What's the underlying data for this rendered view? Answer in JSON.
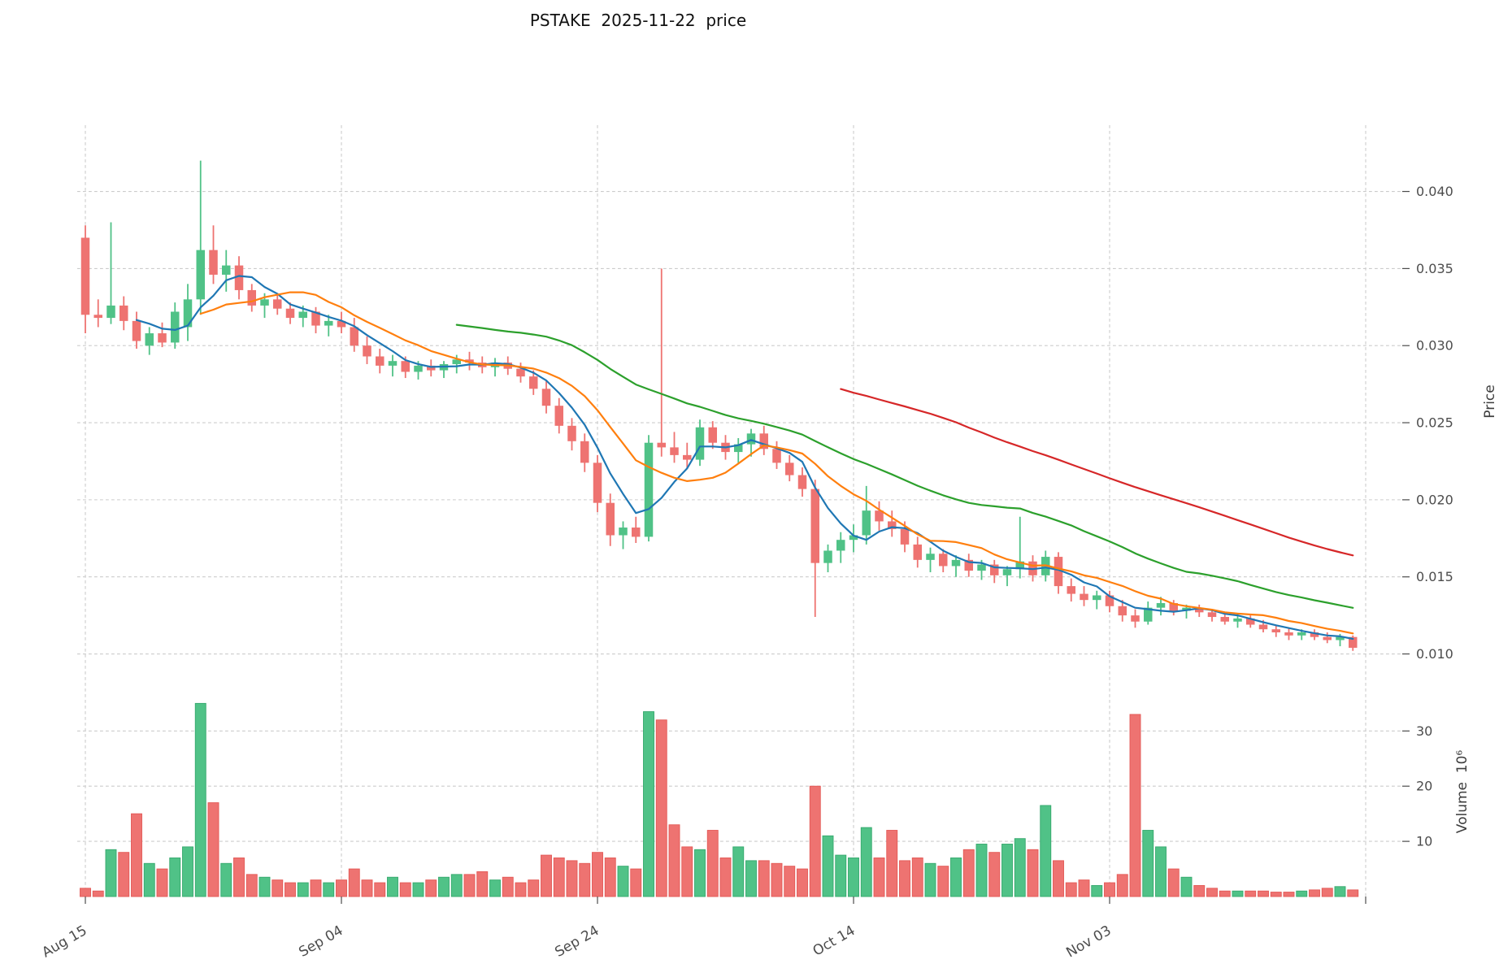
{
  "chart_data": {
    "type": "candlestick",
    "title": "PSTAKE  2025-11-22  price",
    "ylabel_price": "Price",
    "ylabel_volume": "Volume  10⁶",
    "price_ticks": [
      "0.010",
      "0.015",
      "0.020",
      "0.025",
      "0.030",
      "0.035",
      "0.040"
    ],
    "volume_ticks": [
      "10",
      "20",
      "30"
    ],
    "x_ticks": [
      {
        "label": "Aug 15",
        "day": 0
      },
      {
        "label": "Sep 04",
        "day": 20
      },
      {
        "label": "Sep 24",
        "day": 40
      },
      {
        "label": "Oct 14",
        "day": 60
      },
      {
        "label": "Nov 03",
        "day": 80
      }
    ],
    "extra_grid_days": [
      100
    ],
    "ylim_price": [
      0.0085,
      0.0443
    ],
    "ylim_volume": [
      0,
      38
    ],
    "grid": true,
    "legend": "none",
    "overlays": [
      {
        "name": "sma5",
        "period": 5,
        "color": "#1f77b4"
      },
      {
        "name": "sma10",
        "period": 10,
        "color": "#ff7f0e"
      },
      {
        "name": "sma30",
        "period": 30,
        "color": "#2ca02c"
      },
      {
        "name": "sma60",
        "period": 60,
        "color": "#d62728"
      }
    ],
    "colors": {
      "up": "#50c287",
      "down": "#ee7371",
      "up_edge": "#35a86d",
      "down_edge": "#e35855",
      "grid": "#cccccc",
      "tick_text": "#4c4c4c",
      "title_text": "#111111"
    },
    "columns": [
      "date",
      "open",
      "high",
      "low",
      "close",
      "volume_millions"
    ],
    "candles": [
      [
        "2025-08-15",
        0.037,
        0.0378,
        0.0308,
        0.032,
        1.5
      ],
      [
        "2025-08-16",
        0.032,
        0.033,
        0.0312,
        0.0318,
        1.0
      ],
      [
        "2025-08-17",
        0.0318,
        0.038,
        0.0314,
        0.0326,
        8.5
      ],
      [
        "2025-08-18",
        0.0326,
        0.0332,
        0.031,
        0.0316,
        8.0
      ],
      [
        "2025-08-19",
        0.0316,
        0.0322,
        0.0298,
        0.0303,
        15.0
      ],
      [
        "2025-08-20",
        0.03,
        0.0312,
        0.0294,
        0.0308,
        6.0
      ],
      [
        "2025-08-21",
        0.0308,
        0.0315,
        0.0299,
        0.0302,
        5.0
      ],
      [
        "2025-08-22",
        0.0302,
        0.0328,
        0.0298,
        0.0322,
        7.0
      ],
      [
        "2025-08-23",
        0.0312,
        0.034,
        0.0303,
        0.033,
        9.0
      ],
      [
        "2025-08-24",
        0.033,
        0.042,
        0.032,
        0.0362,
        35.0
      ],
      [
        "2025-08-25",
        0.0362,
        0.0378,
        0.034,
        0.0346,
        17.0
      ],
      [
        "2025-08-26",
        0.0346,
        0.0362,
        0.0335,
        0.0352,
        6.0
      ],
      [
        "2025-08-27",
        0.0352,
        0.0358,
        0.033,
        0.0336,
        7.0
      ],
      [
        "2025-08-28",
        0.0336,
        0.034,
        0.0322,
        0.0326,
        4.0
      ],
      [
        "2025-08-29",
        0.0326,
        0.0334,
        0.0318,
        0.033,
        3.5
      ],
      [
        "2025-08-30",
        0.033,
        0.0334,
        0.032,
        0.0324,
        3.0
      ],
      [
        "2025-08-31",
        0.0324,
        0.0328,
        0.0314,
        0.0318,
        2.5
      ],
      [
        "2025-09-01",
        0.0318,
        0.0326,
        0.0312,
        0.0322,
        2.5
      ],
      [
        "2025-09-02",
        0.0322,
        0.0325,
        0.0308,
        0.0313,
        3.0
      ],
      [
        "2025-09-03",
        0.0313,
        0.032,
        0.0306,
        0.0316,
        2.5
      ],
      [
        "2025-09-04",
        0.0316,
        0.0322,
        0.0308,
        0.0312,
        3.0
      ],
      [
        "2025-09-05",
        0.0312,
        0.0318,
        0.0296,
        0.03,
        5.0
      ],
      [
        "2025-09-06",
        0.03,
        0.0306,
        0.0288,
        0.0293,
        3.0
      ],
      [
        "2025-09-07",
        0.0293,
        0.0298,
        0.0282,
        0.0287,
        2.5
      ],
      [
        "2025-09-08",
        0.0287,
        0.0294,
        0.028,
        0.029,
        3.5
      ],
      [
        "2025-09-09",
        0.029,
        0.0293,
        0.0279,
        0.0283,
        2.5
      ],
      [
        "2025-09-10",
        0.0283,
        0.029,
        0.0278,
        0.0287,
        2.5
      ],
      [
        "2025-09-11",
        0.0287,
        0.0291,
        0.028,
        0.0284,
        3.0
      ],
      [
        "2025-09-12",
        0.0284,
        0.029,
        0.0279,
        0.0288,
        3.5
      ],
      [
        "2025-09-13",
        0.0288,
        0.0294,
        0.0282,
        0.0291,
        4.0
      ],
      [
        "2025-09-14",
        0.0291,
        0.0296,
        0.0284,
        0.0289,
        4.0
      ],
      [
        "2025-09-15",
        0.0289,
        0.0293,
        0.0282,
        0.0286,
        4.5
      ],
      [
        "2025-09-16",
        0.0286,
        0.0292,
        0.028,
        0.0289,
        3.0
      ],
      [
        "2025-09-17",
        0.0289,
        0.0293,
        0.0281,
        0.0285,
        3.5
      ],
      [
        "2025-09-18",
        0.0285,
        0.0289,
        0.0276,
        0.028,
        2.5
      ],
      [
        "2025-09-19",
        0.028,
        0.0284,
        0.0268,
        0.0272,
        3.0
      ],
      [
        "2025-09-20",
        0.0272,
        0.0277,
        0.0256,
        0.0261,
        7.5
      ],
      [
        "2025-09-21",
        0.0261,
        0.0266,
        0.0243,
        0.0248,
        7.0
      ],
      [
        "2025-09-22",
        0.0248,
        0.0253,
        0.0232,
        0.0238,
        6.5
      ],
      [
        "2025-09-23",
        0.0238,
        0.0243,
        0.0218,
        0.0224,
        6.0
      ],
      [
        "2025-09-24",
        0.0224,
        0.0229,
        0.0192,
        0.0198,
        8.0
      ],
      [
        "2025-09-25",
        0.0198,
        0.0204,
        0.017,
        0.0177,
        7.0
      ],
      [
        "2025-09-26",
        0.0177,
        0.0186,
        0.0168,
        0.0182,
        5.5
      ],
      [
        "2025-09-27",
        0.0182,
        0.0189,
        0.0172,
        0.0176,
        5.0
      ],
      [
        "2025-09-28",
        0.0176,
        0.0242,
        0.0173,
        0.0237,
        33.5
      ],
      [
        "2025-09-29",
        0.0237,
        0.035,
        0.0228,
        0.0234,
        32.0
      ],
      [
        "2025-09-30",
        0.0234,
        0.0244,
        0.0224,
        0.0229,
        13.0
      ],
      [
        "2025-10-01",
        0.0229,
        0.0237,
        0.022,
        0.0226,
        9.0
      ],
      [
        "2025-10-02",
        0.0226,
        0.0252,
        0.0222,
        0.0247,
        8.5
      ],
      [
        "2025-10-03",
        0.0247,
        0.0251,
        0.0233,
        0.0237,
        12.0
      ],
      [
        "2025-10-04",
        0.0237,
        0.0242,
        0.0226,
        0.0231,
        7.0
      ],
      [
        "2025-10-05",
        0.0231,
        0.024,
        0.0224,
        0.0236,
        9.0
      ],
      [
        "2025-10-06",
        0.0236,
        0.0246,
        0.0228,
        0.0243,
        6.5
      ],
      [
        "2025-10-07",
        0.0243,
        0.0248,
        0.0229,
        0.0233,
        6.5
      ],
      [
        "2025-10-08",
        0.0233,
        0.0238,
        0.022,
        0.0224,
        6.0
      ],
      [
        "2025-10-09",
        0.0224,
        0.0229,
        0.0212,
        0.0216,
        5.5
      ],
      [
        "2025-10-10",
        0.0216,
        0.0221,
        0.0202,
        0.0207,
        5.0
      ],
      [
        "2025-10-11",
        0.0207,
        0.0213,
        0.0124,
        0.0159,
        20.0
      ],
      [
        "2025-10-12",
        0.0159,
        0.0171,
        0.0153,
        0.0167,
        11.0
      ],
      [
        "2025-10-13",
        0.0167,
        0.0179,
        0.0159,
        0.0174,
        7.5
      ],
      [
        "2025-10-14",
        0.0174,
        0.0184,
        0.0166,
        0.0177,
        7.0
      ],
      [
        "2025-10-15",
        0.0177,
        0.0209,
        0.0171,
        0.0193,
        12.5
      ],
      [
        "2025-10-16",
        0.0193,
        0.0199,
        0.018,
        0.0186,
        7.0
      ],
      [
        "2025-10-17",
        0.0186,
        0.0193,
        0.0176,
        0.0181,
        12.0
      ],
      [
        "2025-10-18",
        0.0181,
        0.0186,
        0.0166,
        0.0171,
        6.5
      ],
      [
        "2025-10-19",
        0.0171,
        0.0176,
        0.0156,
        0.0161,
        7.0
      ],
      [
        "2025-10-20",
        0.0161,
        0.0169,
        0.0153,
        0.0165,
        6.0
      ],
      [
        "2025-10-21",
        0.0165,
        0.0168,
        0.0153,
        0.0157,
        5.5
      ],
      [
        "2025-10-22",
        0.0157,
        0.0164,
        0.015,
        0.0161,
        7.0
      ],
      [
        "2025-10-23",
        0.0161,
        0.0165,
        0.015,
        0.0154,
        8.5
      ],
      [
        "2025-10-24",
        0.0154,
        0.0161,
        0.0148,
        0.0158,
        9.5
      ],
      [
        "2025-10-25",
        0.0158,
        0.0161,
        0.0146,
        0.0151,
        8.0
      ],
      [
        "2025-10-26",
        0.0151,
        0.0157,
        0.0144,
        0.0155,
        9.5
      ],
      [
        "2025-10-27",
        0.0155,
        0.0189,
        0.0149,
        0.016,
        10.5
      ],
      [
        "2025-10-28",
        0.016,
        0.0164,
        0.0147,
        0.0151,
        8.5
      ],
      [
        "2025-10-29",
        0.0151,
        0.0167,
        0.0147,
        0.0163,
        16.5
      ],
      [
        "2025-10-30",
        0.0163,
        0.0166,
        0.0139,
        0.0144,
        6.5
      ],
      [
        "2025-10-31",
        0.0144,
        0.0149,
        0.0134,
        0.0139,
        2.5
      ],
      [
        "2025-11-01",
        0.0139,
        0.0144,
        0.0131,
        0.0135,
        3.0
      ],
      [
        "2025-11-02",
        0.0135,
        0.0141,
        0.0129,
        0.0138,
        2.0
      ],
      [
        "2025-11-03",
        0.0138,
        0.0141,
        0.0127,
        0.0131,
        2.5
      ],
      [
        "2025-11-04",
        0.0131,
        0.0135,
        0.0121,
        0.0125,
        4.0
      ],
      [
        "2025-11-05",
        0.0125,
        0.0129,
        0.0117,
        0.0121,
        33.0
      ],
      [
        "2025-11-06",
        0.0121,
        0.0134,
        0.0119,
        0.013,
        12.0
      ],
      [
        "2025-11-07",
        0.013,
        0.0137,
        0.0125,
        0.0133,
        9.0
      ],
      [
        "2025-11-08",
        0.0133,
        0.0135,
        0.0125,
        0.0128,
        5.0
      ],
      [
        "2025-11-09",
        0.0128,
        0.0132,
        0.0123,
        0.013,
        3.5
      ],
      [
        "2025-11-10",
        0.013,
        0.0132,
        0.0124,
        0.0127,
        2.0
      ],
      [
        "2025-11-11",
        0.0127,
        0.0129,
        0.0121,
        0.0124,
        1.5
      ],
      [
        "2025-11-12",
        0.0124,
        0.0127,
        0.0119,
        0.0121,
        1.0
      ],
      [
        "2025-11-13",
        0.0121,
        0.0125,
        0.0117,
        0.0123,
        1.0
      ],
      [
        "2025-11-14",
        0.0123,
        0.0125,
        0.0117,
        0.0119,
        1.0
      ],
      [
        "2025-11-15",
        0.0119,
        0.0122,
        0.0114,
        0.0116,
        1.0
      ],
      [
        "2025-11-16",
        0.0116,
        0.0119,
        0.0111,
        0.0114,
        0.8
      ],
      [
        "2025-11-17",
        0.0114,
        0.0117,
        0.0109,
        0.0112,
        0.8
      ],
      [
        "2025-11-18",
        0.0112,
        0.0116,
        0.0109,
        0.0114,
        1.0
      ],
      [
        "2025-11-19",
        0.0114,
        0.0116,
        0.0109,
        0.0111,
        1.2
      ],
      [
        "2025-11-20",
        0.0111,
        0.0114,
        0.0107,
        0.0109,
        1.5
      ],
      [
        "2025-11-21",
        0.0109,
        0.0113,
        0.0105,
        0.0111,
        1.8
      ],
      [
        "2025-11-22",
        0.0111,
        0.0112,
        0.0102,
        0.0104,
        1.2
      ]
    ]
  }
}
